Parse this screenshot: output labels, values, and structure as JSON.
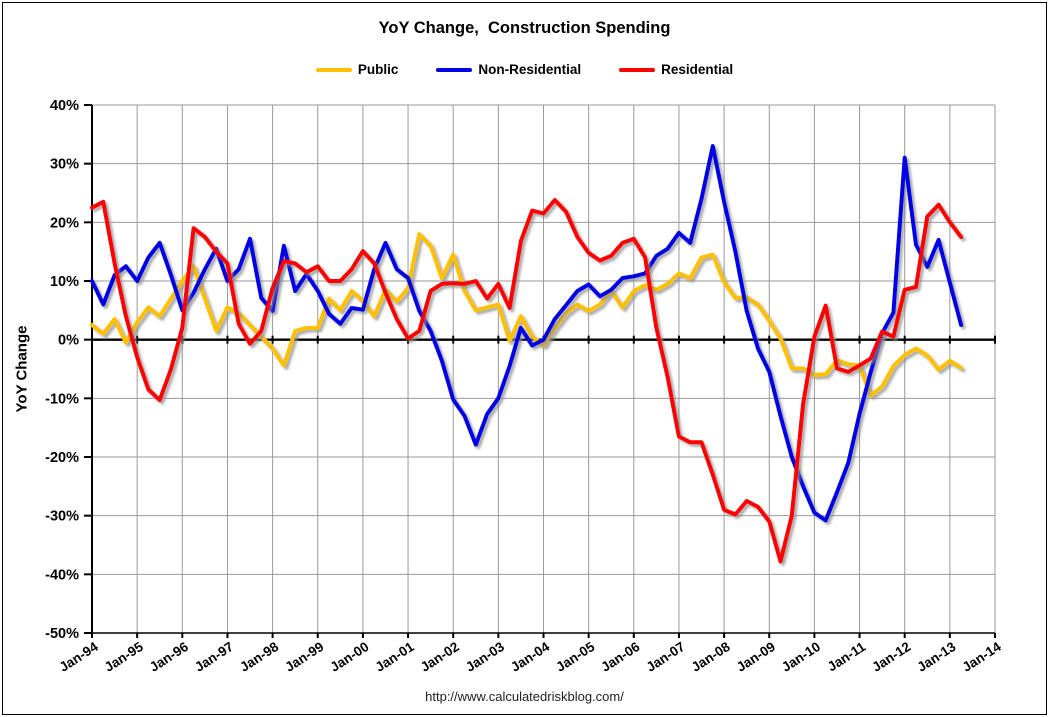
{
  "page": {
    "url_caption": "http://www.calculatedriskblog.com/"
  },
  "legend": [
    {
      "label": "Public",
      "color": "#FFC000"
    },
    {
      "label": "Non-Residential",
      "color": "#0000E6"
    },
    {
      "label": "Residential",
      "color": "#FF0000"
    }
  ],
  "chart_data": {
    "type": "line",
    "title": "YoY Change,  Construction Spending",
    "xlabel": "",
    "ylabel": "YoY Change",
    "ylim": [
      -50,
      40
    ],
    "y_tick_step": 10,
    "y_tick_labels": [
      "40%",
      "30%",
      "20%",
      "10%",
      "0%",
      "-10%",
      "-20%",
      "-30%",
      "-40%",
      "-50%"
    ],
    "x_tick_labels": [
      "Jan-94",
      "Jan-95",
      "Jan-96",
      "Jan-97",
      "Jan-98",
      "Jan-99",
      "Jan-00",
      "Jan-01",
      "Jan-02",
      "Jan-03",
      "Jan-04",
      "Jan-05",
      "Jan-06",
      "Jan-07",
      "Jan-08",
      "Jan-09",
      "Jan-10",
      "Jan-11",
      "Jan-12",
      "Jan-13",
      "Jan-14"
    ],
    "x_start_year": 1994,
    "x_step_years": 0.25,
    "grid": true,
    "legend_position": "top",
    "units": "percent YoY",
    "series": [
      {
        "name": "Public",
        "color": "#FFC000",
        "values": [
          2.5,
          1.0,
          3.5,
          -0.5,
          3.0,
          5.5,
          4.0,
          7.0,
          10.0,
          12.5,
          7.0,
          1.5,
          5.5,
          4.5,
          2.5,
          0.5,
          -1.5,
          -4.4,
          1.5,
          2.0,
          2.0,
          7.0,
          5.0,
          8.3,
          6.6,
          4.0,
          8.5,
          6.5,
          8.8,
          18.0,
          16.0,
          10.5,
          14.5,
          8.3,
          5.0,
          5.5,
          6.0,
          -0.2,
          4.0,
          0.5,
          -1.0,
          2.0,
          4.5,
          6.0,
          4.9,
          6.0,
          8.3,
          5.5,
          8.3,
          9.3,
          8.5,
          9.5,
          11.3,
          10.5,
          14.0,
          14.5,
          9.8,
          7.1,
          7.2,
          6.0,
          3.2,
          0.2,
          -4.9,
          -4.9,
          -6.0,
          -5.9,
          -3.5,
          -4.2,
          -4.4,
          -9.5,
          -8.0,
          -4.5,
          -2.6,
          -1.5,
          -2.7,
          -5.1,
          -3.6,
          -4.8
        ]
      },
      {
        "name": "Non-Residential",
        "color": "#0000E6",
        "values": [
          10.0,
          6.0,
          11.0,
          12.5,
          10.0,
          14.0,
          16.5,
          11.0,
          5.0,
          8.0,
          12.0,
          15.5,
          10.0,
          12.0,
          17.2,
          7.1,
          4.9,
          16.0,
          8.3,
          11.2,
          8.3,
          4.4,
          2.7,
          5.4,
          5.1,
          12.0,
          16.5,
          12.0,
          10.5,
          4.9,
          1.5,
          -3.6,
          -10.2,
          -13.0,
          -17.9,
          -12.7,
          -10.0,
          -4.5,
          2.0,
          -1.0,
          0.0,
          3.5,
          5.9,
          8.3,
          9.4,
          7.4,
          8.5,
          10.5,
          10.8,
          11.3,
          14.3,
          15.5,
          18.2,
          16.5,
          24.0,
          33.0,
          23.5,
          15.0,
          4.9,
          -1.5,
          -5.5,
          -13.0,
          -20.0,
          -25.0,
          -29.5,
          -30.8,
          -26.0,
          -21.0,
          -12.7,
          -5.5,
          1.1,
          4.6,
          31.0,
          16.2,
          12.4,
          17.0,
          9.7,
          2.5
        ]
      },
      {
        "name": "Residential",
        "color": "#FF0000",
        "values": [
          22.5,
          23.5,
          13.0,
          4.0,
          -3.0,
          -8.5,
          -10.3,
          -5.0,
          2.0,
          19.0,
          17.5,
          15.0,
          13.0,
          2.7,
          -0.7,
          1.5,
          8.8,
          13.4,
          13.0,
          11.5,
          12.5,
          10.0,
          10.0,
          12.0,
          15.1,
          13.0,
          8.0,
          3.5,
          0.2,
          1.5,
          8.3,
          9.5,
          9.6,
          9.5,
          10.0,
          7.0,
          9.5,
          5.4,
          16.8,
          22.0,
          21.5,
          23.8,
          21.8,
          17.5,
          14.8,
          13.5,
          14.3,
          16.5,
          17.2,
          14.0,
          2.0,
          -6.4,
          -16.5,
          -17.5,
          -17.5,
          -23.0,
          -29.0,
          -29.8,
          -27.5,
          -28.5,
          -31.0,
          -37.8,
          -30.0,
          -11.0,
          0.5,
          5.8,
          -4.9,
          -5.5,
          -4.4,
          -3.2,
          1.4,
          0.5,
          8.5,
          9.0,
          21.0,
          23.0,
          20.0,
          17.5
        ]
      }
    ]
  }
}
